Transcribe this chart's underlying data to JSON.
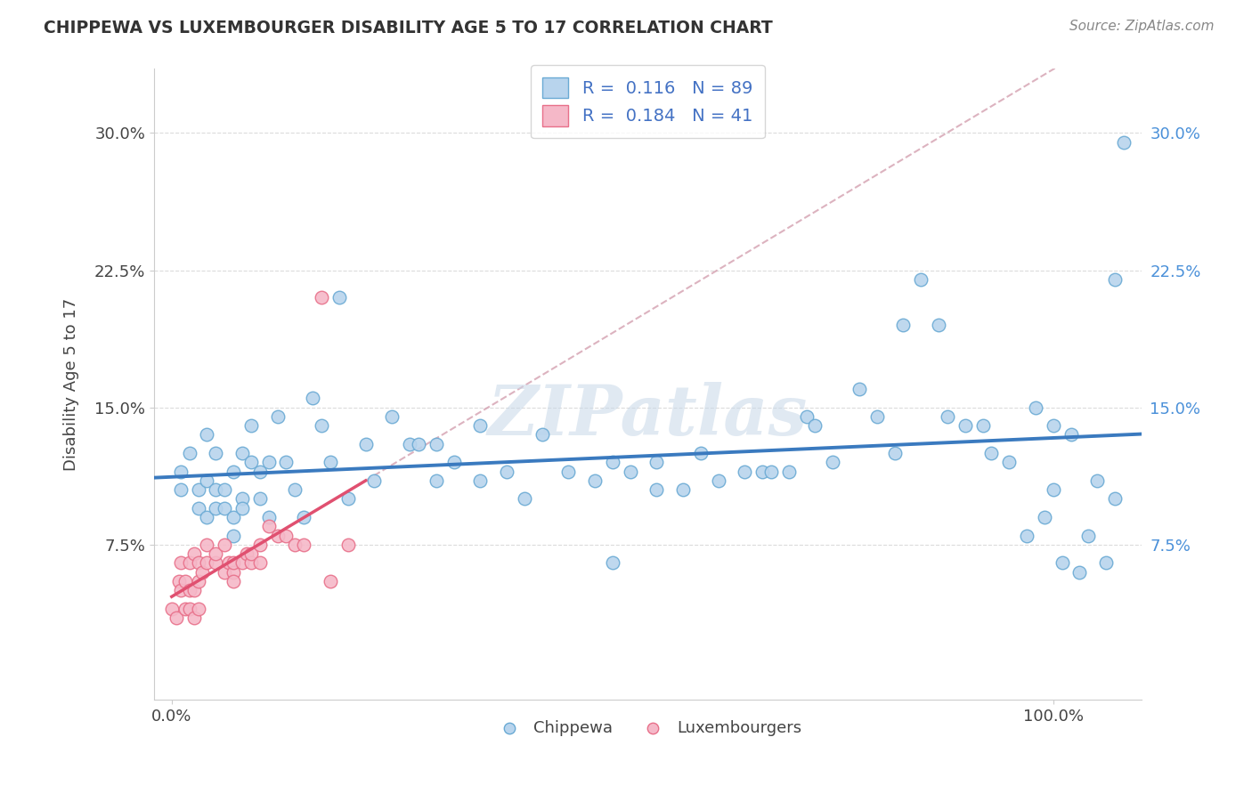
{
  "title": "CHIPPEWA VS LUXEMBOURGER DISABILITY AGE 5 TO 17 CORRELATION CHART",
  "source": "Source: ZipAtlas.com",
  "ylabel": "Disability Age 5 to 17",
  "xlabel": "",
  "xlim": [
    -0.02,
    1.1
  ],
  "ylim": [
    -0.01,
    0.335
  ],
  "chippewa_R": 0.116,
  "chippewa_N": 89,
  "luxembourger_R": 0.184,
  "luxembourger_N": 41,
  "chippewa_color": "#b8d4ed",
  "chippewa_edge_color": "#6aaad4",
  "luxembourger_color": "#f5b8c8",
  "luxembourger_edge_color": "#e8708a",
  "chippewa_line_color": "#3a7abf",
  "luxembourger_line_color": "#e05070",
  "dashed_line_color": "#d4a0b0",
  "watermark": "ZIPatlas",
  "background_color": "#ffffff",
  "chippewa_scatter_x": [
    0.01,
    0.01,
    0.02,
    0.03,
    0.03,
    0.04,
    0.04,
    0.04,
    0.05,
    0.05,
    0.05,
    0.06,
    0.06,
    0.07,
    0.07,
    0.07,
    0.08,
    0.08,
    0.08,
    0.09,
    0.09,
    0.1,
    0.1,
    0.11,
    0.11,
    0.12,
    0.13,
    0.14,
    0.15,
    0.16,
    0.17,
    0.18,
    0.19,
    0.2,
    0.22,
    0.23,
    0.25,
    0.27,
    0.28,
    0.3,
    0.3,
    0.32,
    0.35,
    0.35,
    0.38,
    0.4,
    0.42,
    0.45,
    0.48,
    0.5,
    0.5,
    0.52,
    0.55,
    0.55,
    0.58,
    0.6,
    0.62,
    0.65,
    0.67,
    0.68,
    0.7,
    0.72,
    0.73,
    0.75,
    0.78,
    0.8,
    0.82,
    0.83,
    0.85,
    0.87,
    0.88,
    0.9,
    0.92,
    0.93,
    0.95,
    0.97,
    0.98,
    0.99,
    1.0,
    1.0,
    1.01,
    1.02,
    1.03,
    1.04,
    1.05,
    1.06,
    1.07,
    1.07,
    1.08
  ],
  "chippewa_scatter_y": [
    0.115,
    0.105,
    0.125,
    0.105,
    0.095,
    0.135,
    0.11,
    0.09,
    0.105,
    0.125,
    0.095,
    0.095,
    0.105,
    0.115,
    0.09,
    0.08,
    0.1,
    0.125,
    0.095,
    0.14,
    0.12,
    0.115,
    0.1,
    0.12,
    0.09,
    0.145,
    0.12,
    0.105,
    0.09,
    0.155,
    0.14,
    0.12,
    0.21,
    0.1,
    0.13,
    0.11,
    0.145,
    0.13,
    0.13,
    0.11,
    0.13,
    0.12,
    0.14,
    0.11,
    0.115,
    0.1,
    0.135,
    0.115,
    0.11,
    0.12,
    0.065,
    0.115,
    0.12,
    0.105,
    0.105,
    0.125,
    0.11,
    0.115,
    0.115,
    0.115,
    0.115,
    0.145,
    0.14,
    0.12,
    0.16,
    0.145,
    0.125,
    0.195,
    0.22,
    0.195,
    0.145,
    0.14,
    0.14,
    0.125,
    0.12,
    0.08,
    0.15,
    0.09,
    0.105,
    0.14,
    0.065,
    0.135,
    0.06,
    0.08,
    0.11,
    0.065,
    0.22,
    0.1,
    0.295
  ],
  "luxembourger_scatter_x": [
    0.0,
    0.005,
    0.008,
    0.01,
    0.01,
    0.015,
    0.015,
    0.02,
    0.02,
    0.02,
    0.025,
    0.025,
    0.025,
    0.03,
    0.03,
    0.03,
    0.035,
    0.04,
    0.04,
    0.05,
    0.05,
    0.06,
    0.06,
    0.065,
    0.07,
    0.07,
    0.07,
    0.08,
    0.085,
    0.09,
    0.09,
    0.1,
    0.1,
    0.11,
    0.12,
    0.13,
    0.14,
    0.15,
    0.17,
    0.18,
    0.2
  ],
  "luxembourger_scatter_y": [
    0.04,
    0.035,
    0.055,
    0.05,
    0.065,
    0.04,
    0.055,
    0.04,
    0.05,
    0.065,
    0.035,
    0.05,
    0.07,
    0.055,
    0.065,
    0.04,
    0.06,
    0.065,
    0.075,
    0.065,
    0.07,
    0.06,
    0.075,
    0.065,
    0.06,
    0.065,
    0.055,
    0.065,
    0.07,
    0.065,
    0.07,
    0.065,
    0.075,
    0.085,
    0.08,
    0.08,
    0.075,
    0.075,
    0.21,
    0.055,
    0.075
  ]
}
